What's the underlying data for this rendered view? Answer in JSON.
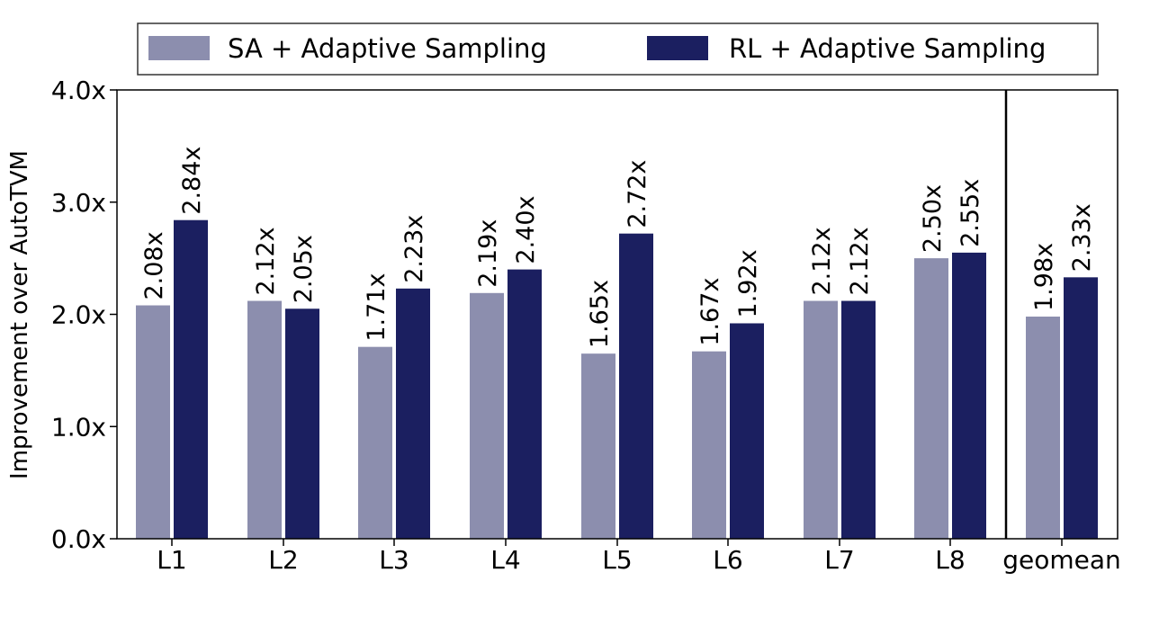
{
  "chart_data": {
    "type": "bar",
    "title": "",
    "xlabel": "",
    "ylabel": "Improvement over AutoTVM",
    "ylim": [
      0,
      4.0
    ],
    "yticks": [
      0.0,
      1.0,
      2.0,
      3.0,
      4.0
    ],
    "ytick_labels": [
      "0.0x",
      "1.0x",
      "2.0x",
      "3.0x",
      "4.0x"
    ],
    "categories": [
      "L1",
      "L2",
      "L3",
      "L4",
      "L5",
      "L6",
      "L7",
      "L8",
      "geomean"
    ],
    "series": [
      {
        "name": "SA + Adaptive Sampling",
        "color": "#8c8eae",
        "values": [
          2.08,
          2.12,
          1.71,
          2.19,
          1.65,
          1.67,
          2.12,
          2.5,
          1.98
        ],
        "labels": [
          "2.08x",
          "2.12x",
          "1.71x",
          "2.19x",
          "1.65x",
          "1.67x",
          "2.12x",
          "2.50x",
          "1.98x"
        ]
      },
      {
        "name": "RL + Adaptive Sampling",
        "color": "#1b1f60",
        "values": [
          2.84,
          2.05,
          2.23,
          2.4,
          2.72,
          1.92,
          2.12,
          2.55,
          2.33
        ],
        "labels": [
          "2.84x",
          "2.05x",
          "2.23x",
          "2.40x",
          "2.72x",
          "1.92x",
          "2.12x",
          "2.55x",
          "2.33x"
        ]
      }
    ],
    "legend_position": "top-center",
    "grid": false,
    "separator_before": "geomean"
  }
}
